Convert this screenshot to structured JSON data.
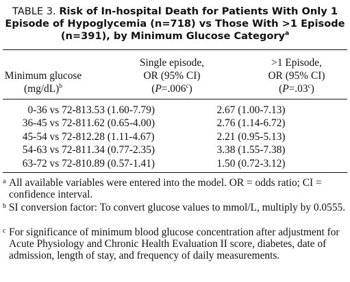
{
  "title": {
    "label": "TABLE 3.",
    "text": "Risk of In-hospital Death for Patients With Only 1 Episode of Hypoglycemia (n=718) vs Those With >1 Episode (n=391), by Minimum Glucose Category",
    "mark": "a"
  },
  "headers": {
    "col0": {
      "line1": "Minimum glucose",
      "line2": "(mg/dL)",
      "mark": "b"
    },
    "col1": {
      "line1": "Single episode,",
      "line2": "OR (95% CI)",
      "p_label": "P",
      "p_value": "=.006",
      "mark": "c"
    },
    "col2": {
      "line1": ">1 Episode,",
      "line2": "OR (95% CI)",
      "p_label": "P",
      "p_value": "=.03",
      "mark": "c"
    }
  },
  "rows": [
    {
      "category": "0-36 vs 72-81",
      "single": "3.53 (1.60-7.79)",
      "multiple": "2.67 (1.00-7.13)"
    },
    {
      "category": "36-45 vs 72-81",
      "single": "1.62 (0.65-4.00)",
      "multiple": "2.76 (1.14-6.72)"
    },
    {
      "category": "45-54 vs 72-81",
      "single": "2.28 (1.11-4.67)",
      "multiple": "2.21 (0.95-5.13)"
    },
    {
      "category": "54-63 vs 72-81",
      "single": "1.34 (0.77-2.35)",
      "multiple": "3.38 (1.55-7.38)"
    },
    {
      "category": "63-72 vs 72-81",
      "single": "0.89 (0.57-1.41)",
      "multiple": "1.50 (0.72-3.12)"
    }
  ],
  "footnotes": [
    {
      "mark": "a",
      "text": "All available variables were entered into the model. OR = odds ratio; CI = confidence interval."
    },
    {
      "mark": "b",
      "text": "SI conversion factor: To convert glucose values to mmol/L, multiply by 0.0555."
    },
    {
      "mark": "c",
      "text": "For significance of minimum blood glucose concentration after adjustment for Acute Physiology and Chronic Health Evaluation II score, diabetes, date of admission, length of stay, and frequency of daily measurements."
    }
  ]
}
